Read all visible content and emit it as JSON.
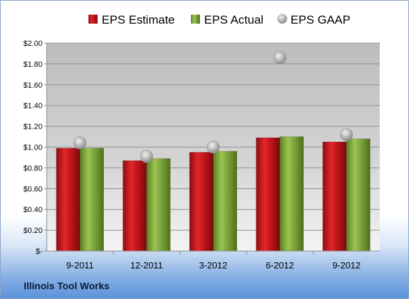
{
  "chart_data": {
    "type": "bar",
    "categories": [
      "9-2011",
      "12-2011",
      "3-2012",
      "6-2012",
      "9-2012"
    ],
    "series": [
      {
        "name": "EPS Estimate",
        "kind": "bar",
        "color": "#c0171c",
        "values": [
          0.99,
          0.87,
          0.95,
          1.09,
          1.05
        ]
      },
      {
        "name": "EPS Actual",
        "kind": "bar",
        "color": "#7da33c",
        "values": [
          0.99,
          0.89,
          0.96,
          1.1,
          1.08
        ]
      },
      {
        "name": "EPS GAAP",
        "kind": "scatter",
        "color": "#a9a9a9",
        "values": [
          1.04,
          0.91,
          1.0,
          1.86,
          1.12
        ]
      }
    ],
    "y_tick_labels": [
      "$-",
      "$0.20",
      "$0.40",
      "$0.60",
      "$0.80",
      "$1.00",
      "$1.20",
      "$1.40",
      "$1.60",
      "$1.80",
      "$2.00"
    ],
    "ylim": [
      0,
      2.0
    ],
    "grid": true,
    "legend_position": "top"
  },
  "footer": {
    "company": "Illinois Tool Works"
  }
}
